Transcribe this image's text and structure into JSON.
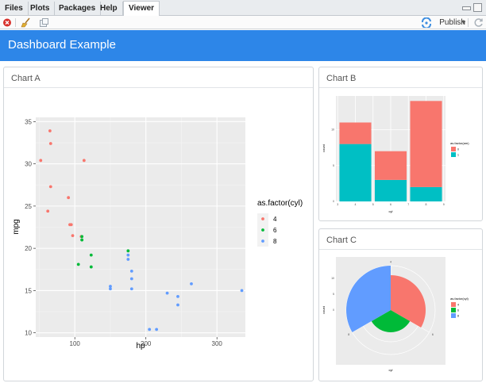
{
  "tabs": [
    {
      "label": "Files",
      "active": false
    },
    {
      "label": "Plots",
      "active": false
    },
    {
      "label": "Packages",
      "active": false
    },
    {
      "label": "Help",
      "active": false
    },
    {
      "label": "Viewer",
      "active": true
    }
  ],
  "toolbar": {
    "publish_label": "Publish",
    "icons": [
      "stop-icon",
      "broom-icon",
      "export-icon",
      "publish-icon",
      "dropdown-chevron-icon",
      "refresh-icon"
    ]
  },
  "header": {
    "title": "Dashboard Example",
    "bg_color": "#2d86e8"
  },
  "cards": {
    "a": {
      "title": "Chart A"
    },
    "b": {
      "title": "Chart B"
    },
    "c": {
      "title": "Chart C"
    }
  },
  "colors": {
    "red": "#f8766d",
    "green": "#00ba38",
    "blue": "#619cff",
    "teal": "#00bfc4",
    "panel": "#ebebeb"
  },
  "chart_data": [
    {
      "type": "scatter",
      "xlabel": "hp",
      "ylabel": "mpg",
      "xlim": [
        45,
        340
      ],
      "ylim": [
        9.5,
        35.5
      ],
      "xticks": [
        100,
        200,
        300
      ],
      "yticks": [
        10,
        15,
        20,
        25,
        30,
        35
      ],
      "legend": {
        "title": "as.factor(cyl)",
        "position": "right"
      },
      "series": [
        {
          "name": "4",
          "color": "#f8766d",
          "points": [
            [
              93,
              22.8
            ],
            [
              62,
              24.4
            ],
            [
              95,
              22.8
            ],
            [
              66,
              32.4
            ],
            [
              52,
              30.4
            ],
            [
              65,
              33.9
            ],
            [
              97,
              21.5
            ],
            [
              66,
              27.3
            ],
            [
              91,
              26.0
            ],
            [
              113,
              30.4
            ],
            [
              109,
              21.4
            ]
          ]
        },
        {
          "name": "6",
          "color": "#00ba38",
          "points": [
            [
              110,
              21.0
            ],
            [
              110,
              21.0
            ],
            [
              110,
              21.4
            ],
            [
              105,
              18.1
            ],
            [
              123,
              19.2
            ],
            [
              123,
              17.8
            ],
            [
              175,
              19.7
            ]
          ]
        },
        {
          "name": "8",
          "color": "#619cff",
          "points": [
            [
              175,
              18.7
            ],
            [
              245,
              14.3
            ],
            [
              180,
              16.4
            ],
            [
              180,
              17.3
            ],
            [
              180,
              15.2
            ],
            [
              205,
              10.4
            ],
            [
              215,
              10.4
            ],
            [
              230,
              14.7
            ],
            [
              150,
              15.5
            ],
            [
              150,
              15.2
            ],
            [
              245,
              13.3
            ],
            [
              175,
              19.2
            ],
            [
              264,
              15.8
            ],
            [
              335,
              15.0
            ]
          ]
        }
      ]
    },
    {
      "type": "bar",
      "xlabel": "cyl",
      "ylabel": "count",
      "stacked": true,
      "categories": [
        "4",
        "6",
        "8"
      ],
      "category_x": [
        4,
        6,
        8
      ],
      "xticks": [
        3,
        4,
        5,
        6,
        7,
        8,
        9
      ],
      "yticks": [
        0,
        5,
        10
      ],
      "ylim": [
        0,
        14.7
      ],
      "legend": {
        "title": "as.factor(am)",
        "position": "right"
      },
      "series": [
        {
          "name": "1",
          "color": "#00bfc4",
          "values": [
            8,
            3,
            2
          ]
        },
        {
          "name": "0",
          "color": "#f8766d",
          "values": [
            3,
            4,
            12
          ]
        }
      ]
    },
    {
      "type": "pie",
      "polar": true,
      "xlabel": "cyl",
      "ylabel": "count",
      "angle_ticks": [
        4,
        6,
        8
      ],
      "radial_ticks": [
        0,
        5,
        10
      ],
      "legend": {
        "title": "as.factor(cyl)",
        "position": "right"
      },
      "slices": [
        {
          "name": "4",
          "color": "#f8766d",
          "value": 11
        },
        {
          "name": "6",
          "color": "#00ba38",
          "value": 7
        },
        {
          "name": "8",
          "color": "#619cff",
          "value": 14
        }
      ]
    }
  ]
}
